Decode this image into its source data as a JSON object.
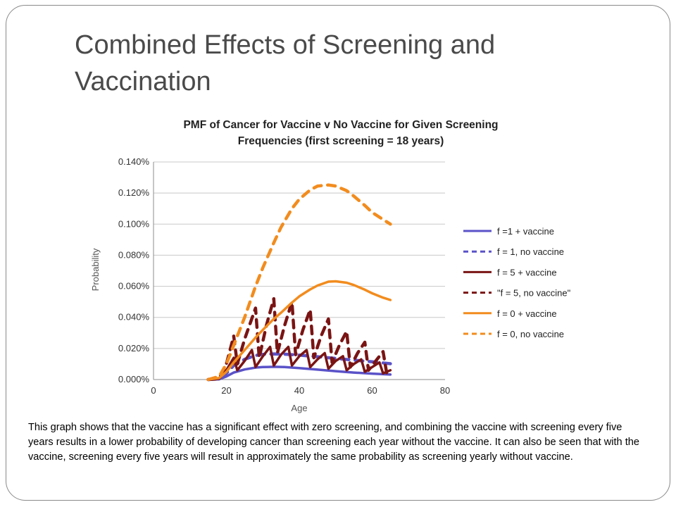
{
  "slide": {
    "title": "Combined Effects of Screening and Vaccination",
    "caption": "This graph shows that the vaccine has a significant effect with zero screening, and combining the vaccine with screening every five years results in a lower probability of developing cancer than screening each year without the vaccine. It can also be seen that with the vaccine, screening every five years will result in approximately the same probability as screening yearly without vaccine."
  },
  "chart_data": {
    "type": "line",
    "title_lines": [
      "PMF of Cancer for Vaccine v No Vaccine for Given Screening",
      "Frequencies (first screening = 18 years)"
    ],
    "xlabel": "Age",
    "ylabel": "Probability",
    "xlim": [
      0,
      80
    ],
    "ylim": [
      0,
      0.14
    ],
    "x_ticks": [
      0,
      20,
      40,
      60,
      80
    ],
    "x_tick_labels": [
      "0",
      "20",
      "40",
      "60",
      "80"
    ],
    "y_ticks": [
      0,
      0.02,
      0.04,
      0.06,
      0.08,
      0.1,
      0.12,
      0.14
    ],
    "y_tick_labels": [
      "0.000%",
      "0.020%",
      "0.040%",
      "0.060%",
      "0.080%",
      "0.100%",
      "0.120%",
      "0.140%"
    ],
    "y_unit": "%",
    "grid": "horizontal",
    "legend_position": "right",
    "series": [
      {
        "name": "f =1 + vaccine",
        "color": "#5a52c8",
        "dash": "solid",
        "x": [
          15,
          18,
          20,
          22,
          25,
          28,
          30,
          33,
          36,
          40,
          45,
          50,
          55,
          60,
          65
        ],
        "y": [
          0,
          0.0002,
          0.002,
          0.0045,
          0.0065,
          0.0077,
          0.008,
          0.0082,
          0.008,
          0.0074,
          0.0064,
          0.0054,
          0.0045,
          0.0038,
          0.0032
        ]
      },
      {
        "name": "f = 1, no vaccine",
        "color": "#5a52c8",
        "dash": "dashed",
        "x": [
          15,
          18,
          20,
          22,
          25,
          28,
          30,
          33,
          36,
          40,
          45,
          50,
          55,
          60,
          65
        ],
        "y": [
          0,
          0.0004,
          0.004,
          0.009,
          0.013,
          0.0155,
          0.0162,
          0.0165,
          0.0163,
          0.0157,
          0.0147,
          0.0136,
          0.0125,
          0.0114,
          0.0102
        ]
      },
      {
        "name": "f = 5 + vaccine",
        "color": "#7a1414",
        "dash": "solid",
        "x": [
          15,
          18,
          20,
          22,
          23,
          25,
          27,
          28,
          30,
          32,
          33,
          35,
          37,
          38,
          40,
          42,
          43,
          45,
          47,
          48,
          50,
          52,
          53,
          55,
          57,
          58,
          60,
          62,
          63,
          65
        ],
        "y": [
          0,
          0.0005,
          0.006,
          0.014,
          0.006,
          0.012,
          0.019,
          0.008,
          0.015,
          0.021,
          0.009,
          0.016,
          0.021,
          0.009,
          0.015,
          0.019,
          0.008,
          0.013,
          0.017,
          0.007,
          0.012,
          0.015,
          0.006,
          0.01,
          0.013,
          0.005,
          0.008,
          0.011,
          0.004,
          0.006
        ]
      },
      {
        "name": "\"f = 5, no vaccine\"",
        "color": "#7a1414",
        "dash": "dashed",
        "x": [
          15,
          18,
          20,
          22,
          23,
          25,
          28,
          29,
          31,
          33,
          34,
          36,
          38,
          39,
          41,
          43,
          44,
          46,
          48,
          49,
          51,
          53,
          54,
          56,
          58,
          59,
          61,
          63,
          64,
          65
        ],
        "y": [
          0,
          0.0006,
          0.01,
          0.028,
          0.01,
          0.026,
          0.046,
          0.014,
          0.035,
          0.052,
          0.017,
          0.035,
          0.05,
          0.016,
          0.032,
          0.045,
          0.014,
          0.028,
          0.039,
          0.011,
          0.022,
          0.031,
          0.008,
          0.017,
          0.024,
          0.006,
          0.012,
          0.018,
          0.004,
          0.005
        ]
      },
      {
        "name": "f = 0 + vaccine",
        "color": "#f28c1e",
        "dash": "solid",
        "x": [
          15,
          18,
          20,
          22,
          25,
          28,
          30,
          33,
          35,
          38,
          40,
          43,
          45,
          48,
          50,
          53,
          55,
          58,
          60,
          63,
          65
        ],
        "y": [
          0,
          0.001,
          0.005,
          0.011,
          0.019,
          0.027,
          0.032,
          0.039,
          0.043,
          0.0495,
          0.0535,
          0.058,
          0.0605,
          0.063,
          0.0632,
          0.0623,
          0.0608,
          0.0578,
          0.0555,
          0.0527,
          0.0512
        ]
      },
      {
        "name": "f = 0, no vaccine",
        "color": "#f28c1e",
        "dash": "dashed",
        "x": [
          15,
          18,
          20,
          22,
          25,
          28,
          30,
          33,
          35,
          38,
          40,
          43,
          45,
          48,
          50,
          53,
          55,
          58,
          60,
          63,
          65
        ],
        "y": [
          0,
          0.002,
          0.01,
          0.022,
          0.04,
          0.06,
          0.072,
          0.088,
          0.098,
          0.11,
          0.116,
          0.122,
          0.1245,
          0.1252,
          0.1245,
          0.1215,
          0.118,
          0.112,
          0.1075,
          0.103,
          0.1
        ]
      }
    ]
  }
}
